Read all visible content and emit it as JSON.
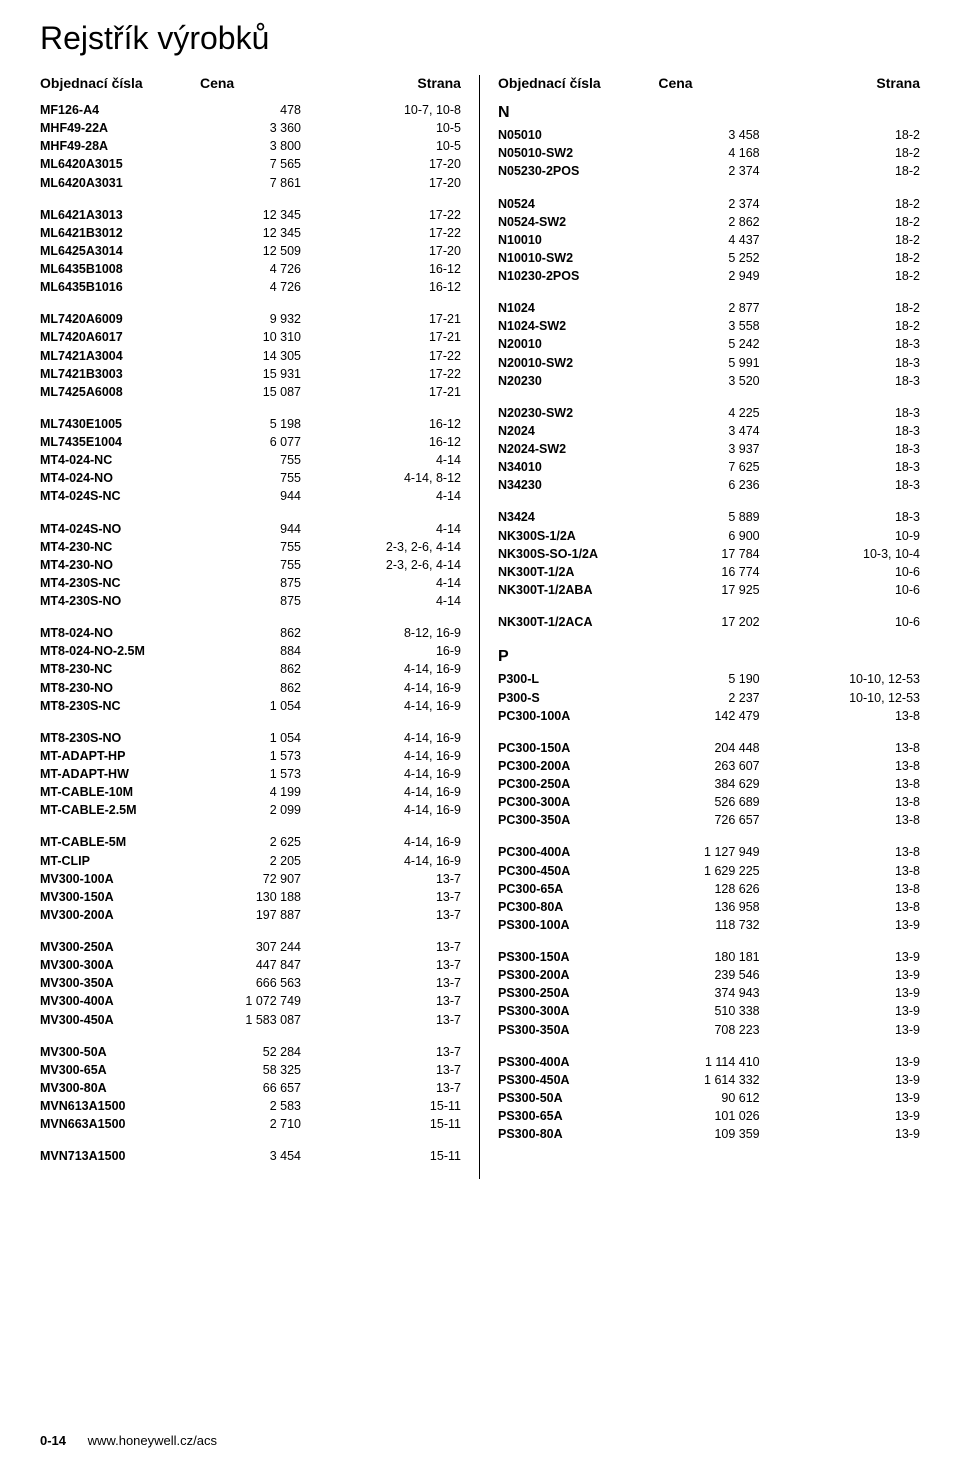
{
  "title": "Rejstřík výrobků",
  "headers": {
    "code": "Objednací čísla",
    "price": "Cena",
    "page": "Strana"
  },
  "footer": {
    "page_number": "0-14",
    "url": "www.honeywell.cz/acs"
  },
  "colors": {
    "text": "#000000",
    "separator": "#000000",
    "background": "#ffffff"
  },
  "typography": {
    "title_fontsize": 32,
    "header_fontsize": 14,
    "body_fontsize": 12.5,
    "footer_fontsize": 13
  },
  "left_groups": [
    {
      "rows": [
        [
          "MF126-A4",
          "478",
          "10-7, 10-8"
        ],
        [
          "MHF49-22A",
          "3 360",
          "10-5"
        ],
        [
          "MHF49-28A",
          "3 800",
          "10-5"
        ],
        [
          "ML6420A3015",
          "7 565",
          "17-20"
        ],
        [
          "ML6420A3031",
          "7 861",
          "17-20"
        ]
      ]
    },
    {
      "rows": [
        [
          "ML6421A3013",
          "12 345",
          "17-22"
        ],
        [
          "ML6421B3012",
          "12 345",
          "17-22"
        ],
        [
          "ML6425A3014",
          "12 509",
          "17-20"
        ],
        [
          "ML6435B1008",
          "4 726",
          "16-12"
        ],
        [
          "ML6435B1016",
          "4 726",
          "16-12"
        ]
      ]
    },
    {
      "rows": [
        [
          "ML7420A6009",
          "9 932",
          "17-21"
        ],
        [
          "ML7420A6017",
          "10 310",
          "17-21"
        ],
        [
          "ML7421A3004",
          "14 305",
          "17-22"
        ],
        [
          "ML7421B3003",
          "15 931",
          "17-22"
        ],
        [
          "ML7425A6008",
          "15 087",
          "17-21"
        ]
      ]
    },
    {
      "rows": [
        [
          "ML7430E1005",
          "5 198",
          "16-12"
        ],
        [
          "ML7435E1004",
          "6 077",
          "16-12"
        ],
        [
          "MT4-024-NC",
          "755",
          "4-14"
        ],
        [
          "MT4-024-NO",
          "755",
          "4-14, 8-12"
        ],
        [
          "MT4-024S-NC",
          "944",
          "4-14"
        ]
      ]
    },
    {
      "rows": [
        [
          "MT4-024S-NO",
          "944",
          "4-14"
        ],
        [
          "MT4-230-NC",
          "755",
          "2-3, 2-6, 4-14"
        ],
        [
          "MT4-230-NO",
          "755",
          "2-3, 2-6, 4-14"
        ],
        [
          "MT4-230S-NC",
          "875",
          "4-14"
        ],
        [
          "MT4-230S-NO",
          "875",
          "4-14"
        ]
      ]
    },
    {
      "rows": [
        [
          "MT8-024-NO",
          "862",
          "8-12, 16-9"
        ],
        [
          "MT8-024-NO-2.5M",
          "884",
          "16-9"
        ],
        [
          "MT8-230-NC",
          "862",
          "4-14, 16-9"
        ],
        [
          "MT8-230-NO",
          "862",
          "4-14, 16-9"
        ],
        [
          "MT8-230S-NC",
          "1 054",
          "4-14, 16-9"
        ]
      ]
    },
    {
      "rows": [
        [
          "MT8-230S-NO",
          "1 054",
          "4-14, 16-9"
        ],
        [
          "MT-ADAPT-HP",
          "1 573",
          "4-14, 16-9"
        ],
        [
          "MT-ADAPT-HW",
          "1 573",
          "4-14, 16-9"
        ],
        [
          "MT-CABLE-10M",
          "4 199",
          "4-14, 16-9"
        ],
        [
          "MT-CABLE-2.5M",
          "2 099",
          "4-14, 16-9"
        ]
      ]
    },
    {
      "rows": [
        [
          "MT-CABLE-5M",
          "2 625",
          "4-14, 16-9"
        ],
        [
          "MT-CLIP",
          "2 205",
          "4-14, 16-9"
        ],
        [
          "MV300-100A",
          "72 907",
          "13-7"
        ],
        [
          "MV300-150A",
          "130 188",
          "13-7"
        ],
        [
          "MV300-200A",
          "197 887",
          "13-7"
        ]
      ]
    },
    {
      "rows": [
        [
          "MV300-250A",
          "307 244",
          "13-7"
        ],
        [
          "MV300-300A",
          "447 847",
          "13-7"
        ],
        [
          "MV300-350A",
          "666 563",
          "13-7"
        ],
        [
          "MV300-400A",
          "1 072 749",
          "13-7"
        ],
        [
          "MV300-450A",
          "1 583 087",
          "13-7"
        ]
      ]
    },
    {
      "rows": [
        [
          "MV300-50A",
          "52 284",
          "13-7"
        ],
        [
          "MV300-65A",
          "58 325",
          "13-7"
        ],
        [
          "MV300-80A",
          "66 657",
          "13-7"
        ],
        [
          "MVN613A1500",
          "2 583",
          "15-11"
        ],
        [
          "MVN663A1500",
          "2 710",
          "15-11"
        ]
      ]
    },
    {
      "rows": [
        [
          "MVN713A1500",
          "3 454",
          "15-11"
        ]
      ]
    }
  ],
  "right_groups": [
    {
      "title": "N",
      "rows": [
        [
          "N05010",
          "3 458",
          "18-2"
        ],
        [
          "N05010-SW2",
          "4 168",
          "18-2"
        ],
        [
          "N05230-2POS",
          "2 374",
          "18-2"
        ]
      ]
    },
    {
      "rows": [
        [
          "N0524",
          "2 374",
          "18-2"
        ],
        [
          "N0524-SW2",
          "2 862",
          "18-2"
        ],
        [
          "N10010",
          "4 437",
          "18-2"
        ],
        [
          "N10010-SW2",
          "5 252",
          "18-2"
        ],
        [
          "N10230-2POS",
          "2 949",
          "18-2"
        ]
      ]
    },
    {
      "rows": [
        [
          "N1024",
          "2 877",
          "18-2"
        ],
        [
          "N1024-SW2",
          "3 558",
          "18-2"
        ],
        [
          "N20010",
          "5 242",
          "18-3"
        ],
        [
          "N20010-SW2",
          "5 991",
          "18-3"
        ],
        [
          "N20230",
          "3 520",
          "18-3"
        ]
      ]
    },
    {
      "rows": [
        [
          "N20230-SW2",
          "4 225",
          "18-3"
        ],
        [
          "N2024",
          "3 474",
          "18-3"
        ],
        [
          "N2024-SW2",
          "3 937",
          "18-3"
        ],
        [
          "N34010",
          "7 625",
          "18-3"
        ],
        [
          "N34230",
          "6 236",
          "18-3"
        ]
      ]
    },
    {
      "rows": [
        [
          "N3424",
          "5 889",
          "18-3"
        ],
        [
          "NK300S-1/2A",
          "6 900",
          "10-9"
        ],
        [
          "NK300S-SO-1/2A",
          "17 784",
          "10-3, 10-4"
        ],
        [
          "NK300T-1/2A",
          "16 774",
          "10-6"
        ],
        [
          "NK300T-1/2ABA",
          "17 925",
          "10-6"
        ]
      ]
    },
    {
      "rows": [
        [
          "NK300T-1/2ACA",
          "17 202",
          "10-6"
        ]
      ]
    },
    {
      "title": "P",
      "rows": [
        [
          "P300-L",
          "5 190",
          "10-10, 12-53"
        ],
        [
          "P300-S",
          "2 237",
          "10-10, 12-53"
        ],
        [
          "PC300-100A",
          "142 479",
          "13-8"
        ]
      ]
    },
    {
      "rows": [
        [
          "PC300-150A",
          "204 448",
          "13-8"
        ],
        [
          "PC300-200A",
          "263 607",
          "13-8"
        ],
        [
          "PC300-250A",
          "384 629",
          "13-8"
        ],
        [
          "PC300-300A",
          "526 689",
          "13-8"
        ],
        [
          "PC300-350A",
          "726 657",
          "13-8"
        ]
      ]
    },
    {
      "rows": [
        [
          "PC300-400A",
          "1 127 949",
          "13-8"
        ],
        [
          "PC300-450A",
          "1 629 225",
          "13-8"
        ],
        [
          "PC300-65A",
          "128 626",
          "13-8"
        ],
        [
          "PC300-80A",
          "136 958",
          "13-8"
        ],
        [
          "PS300-100A",
          "118 732",
          "13-9"
        ]
      ]
    },
    {
      "rows": [
        [
          "PS300-150A",
          "180 181",
          "13-9"
        ],
        [
          "PS300-200A",
          "239 546",
          "13-9"
        ],
        [
          "PS300-250A",
          "374 943",
          "13-9"
        ],
        [
          "PS300-300A",
          "510 338",
          "13-9"
        ],
        [
          "PS300-350A",
          "708 223",
          "13-9"
        ]
      ]
    },
    {
      "rows": [
        [
          "PS300-400A",
          "1 114 410",
          "13-9"
        ],
        [
          "PS300-450A",
          "1 614 332",
          "13-9"
        ],
        [
          "PS300-50A",
          "90 612",
          "13-9"
        ],
        [
          "PS300-65A",
          "101 026",
          "13-9"
        ],
        [
          "PS300-80A",
          "109 359",
          "13-9"
        ]
      ]
    }
  ]
}
